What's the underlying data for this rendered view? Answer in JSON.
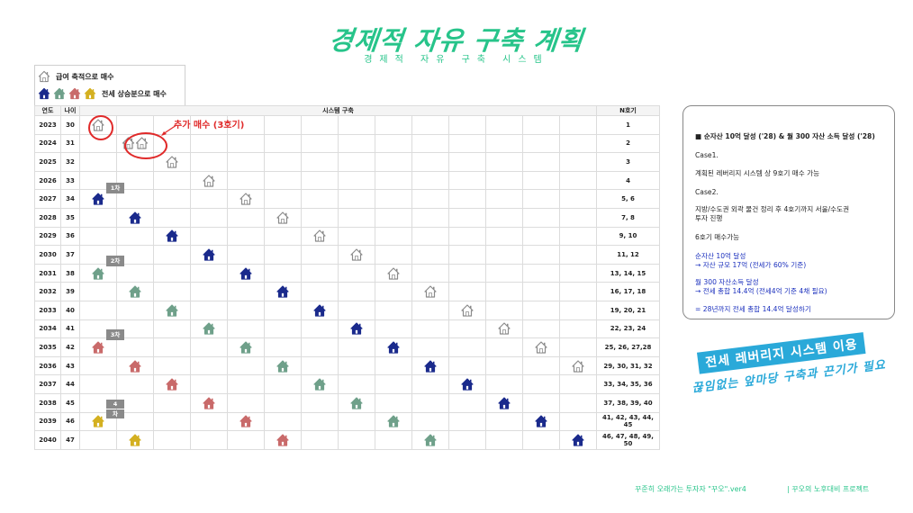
{
  "header": {
    "title": "경제적 자유 구축 계획",
    "subtitle": "경제적 자유 구축 시스템"
  },
  "legend": {
    "row1_label": "급여 축적으로 매수",
    "row2_label": "전세 상승분으로 매수"
  },
  "table": {
    "col_year": "연도",
    "col_age": "나이",
    "col_system": "시스템 구축",
    "col_n": "N호기",
    "rows": [
      {
        "year": "2023",
        "age": "30",
        "n": "1"
      },
      {
        "year": "2024",
        "age": "31",
        "n": "2"
      },
      {
        "year": "2025",
        "age": "32",
        "n": "3"
      },
      {
        "year": "2026",
        "age": "33",
        "n": "4"
      },
      {
        "year": "2027",
        "age": "34",
        "n": "5, 6"
      },
      {
        "year": "2028",
        "age": "35",
        "n": "7, 8"
      },
      {
        "year": "2029",
        "age": "36",
        "n": "9, 10"
      },
      {
        "year": "2030",
        "age": "37",
        "n": "11, 12"
      },
      {
        "year": "2031",
        "age": "38",
        "n": "13, 14, 15"
      },
      {
        "year": "2032",
        "age": "39",
        "n": "16, 17, 18"
      },
      {
        "year": "2033",
        "age": "40",
        "n": "19, 20, 21"
      },
      {
        "year": "2034",
        "age": "41",
        "n": "22, 23, 24"
      },
      {
        "year": "2035",
        "age": "42",
        "n": "25, 26, 27,28"
      },
      {
        "year": "2036",
        "age": "43",
        "n": "29, 30, 31, 32"
      },
      {
        "year": "2037",
        "age": "44",
        "n": "33, 34, 35, 36"
      },
      {
        "year": "2038",
        "age": "45",
        "n": "37, 38, 39, 40"
      },
      {
        "year": "2039",
        "age": "46",
        "n": "41, 42, 43, 44, 45"
      },
      {
        "year": "2040",
        "age": "47",
        "n": "46, 47, 48, 49, 50"
      }
    ],
    "tags": [
      "1차",
      "2차",
      "3차",
      "4",
      "차"
    ],
    "callout": "추가 매수 (3호기)"
  },
  "side_panel": {
    "line1": "■ 순자산 10억 달성 ('28) & 월 300 자산 소득 달성 ('28)",
    "case1": "Case1.",
    "case1_text": "계획된 레버리지 시스템 상 9호기 매수 가능",
    "case2": "Case2.",
    "case2_text1": "지방/수도권 외곽 물건 정리 후 4호기까지 서울/수도권",
    "case2_text2": "투자 진행",
    "case2_text3": "6호기 매수가능",
    "goal1_a": "순자산 10억 달성",
    "goal1_b": "→ 자산 규모 17억 (전세가 60% 기준)",
    "goal2_a": "월 300 자산소득 달성",
    "goal2_b": "→ 전세 총합 14.4억 (전세4억 기준 4채 필요)",
    "goal3": "= 28년까지 전세 총합 14.4억 달성하기"
  },
  "banner": {
    "line1": "전세 레버리지 시스템 이용",
    "line2": "끊임없는 앞마당 구축과 끈기가 필요"
  },
  "footer": {
    "left": "꾸준히 오래가는 투자자 \"꾸오\".ver4",
    "right": "|  꾸오의 노후대비 프로젝트"
  },
  "colors": {
    "title_green": "#27c48a",
    "banner_blue": "#2aa9d9",
    "navy": "#1a2a8c",
    "gray": "#8a8a8a",
    "sage": "#6fa08a",
    "rose": "#c96a6a",
    "gold": "#d4b020",
    "red": "#e02a2a"
  },
  "icons": {
    "house": "house-icon"
  }
}
